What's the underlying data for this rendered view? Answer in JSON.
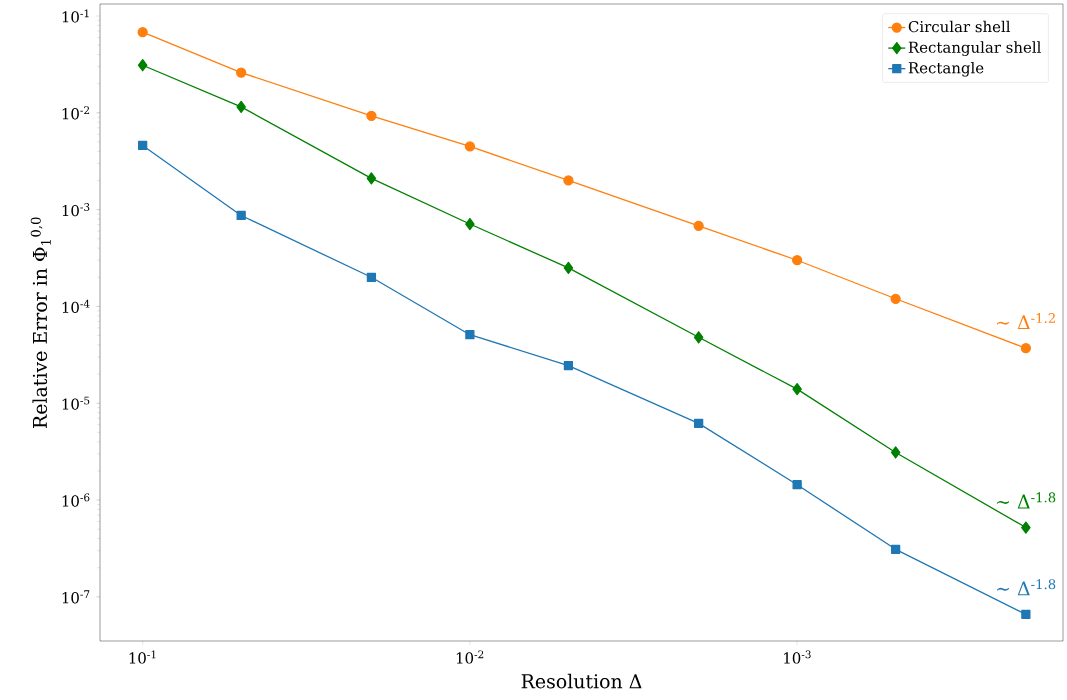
{
  "chart_data": {
    "type": "line",
    "xlabel": "Resolution Δ",
    "ylabel": "Relative Error in Φ$_{1}$$^{0,0}$",
    "log": "xy",
    "grid": false,
    "legend": "top right",
    "line_style": "solid",
    "x": [
      0.1,
      0.05,
      0.02,
      0.01,
      0.005,
      0.002,
      0.001,
      0.0005,
      0.0002
    ],
    "xlim": [
      0.135,
      0.000154
    ],
    "ylim": [
      3.5e-08,
      0.133
    ],
    "xticks": [
      {
        "value": 0.1,
        "label": "10$^{-1}$"
      },
      {
        "value": 0.01,
        "label": "10$^{-2}$"
      },
      {
        "value": 0.001,
        "label": "10$^{-3}$"
      }
    ],
    "yticks": [
      {
        "value": 1e-07,
        "label": "10$^{-7}$"
      },
      {
        "value": 1e-06,
        "label": "10$^{-6}$"
      },
      {
        "value": 1e-05,
        "label": "10$^{-5}$"
      },
      {
        "value": 0.0001,
        "label": "10$^{-4}$"
      },
      {
        "value": 0.001,
        "label": "10$^{-3}$"
      },
      {
        "value": 0.01,
        "label": "10$^{-2}$"
      },
      {
        "value": 0.1,
        "label": "10$^{-1}$"
      }
    ],
    "series": [
      {
        "name": "Circular shell",
        "color": "#ff7f0e",
        "marker": "circle",
        "values": [
          0.068,
          0.026,
          0.0093,
          0.0045,
          0.002,
          0.00068,
          0.0003,
          0.00012,
          3.7e-05
        ]
      },
      {
        "name": "Rectangular shell",
        "color": "#008000",
        "marker": "diamond",
        "values": [
          0.031,
          0.0115,
          0.0021,
          0.00071,
          0.00025,
          4.8e-05,
          1.4e-05,
          3.1e-06,
          5.2e-07
        ]
      },
      {
        "name": "Rectangle",
        "color": "#1f77b4",
        "marker": "square",
        "values": [
          0.0046,
          0.00087,
          0.0002,
          5.1e-05,
          2.45e-05,
          6.2e-06,
          1.44e-06,
          3.1e-07,
          6.6e-08
        ]
      }
    ],
    "annotations": [
      "∼ Δ$^{-1.2}$",
      "∼ Δ$^{-1.8}$",
      "∼ Δ$^{-1.8}$"
    ]
  }
}
